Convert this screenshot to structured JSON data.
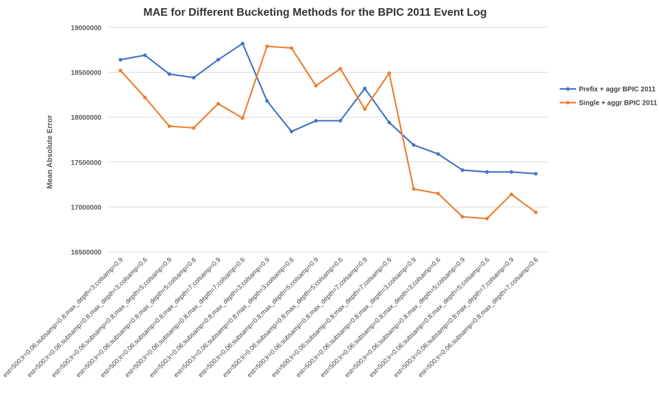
{
  "chart_data": {
    "type": "line",
    "title": "MAE for Different Bucketing Methods for the BPIC 2011 Event Log",
    "xlabel": "",
    "ylabel": "Mean Absolute Error",
    "ylim": [
      16500000,
      19000000
    ],
    "yticks": [
      16500000,
      17000000,
      17500000,
      18000000,
      18500000,
      19000000
    ],
    "grid": true,
    "legend_position": "right",
    "categories": [
      "est=500;lr=0.06;subsamp=0.8;max_depth=3;colsamp=0.9",
      "est=500;lr=0.06;subsamp=0.8;max_depth=3;colsamp=0.6",
      "est=500;lr=0.06;subsamp=0.8;max_depth=5;colsamp=0.9",
      "est=500;lr=0.06;subsamp=0.8;max_depth=5;colsamp=0.6",
      "est=500;lr=0.06;subsamp=0.8;max_depth=7;colsamp=0.9",
      "est=500;lr=0.06;subsamp=0.8;max_depth=7;colsamp=0.6",
      "est=500;lr=0.06;subsamp=0.8;max_depth=3;colsamp=0.9",
      "est=500;lr=0.06;subsamp=0.8;max_depth=3;colsamp=0.6",
      "est=500;lr=0.06;subsamp=0.8;max_depth=5;colsamp=0.9",
      "est=500;lr=0.06;subsamp=0.8;max_depth=5;colsamp=0.6",
      "est=500;lr=0.06;subsamp=0.8;max_depth=7;colsamp=0.9",
      "est=500;lr=0.06;subsamp=0.8;max_depth=7;colsamp=0.6",
      "est=500;lr=0.06;subsamp=0.8;max_depth=3;colsamp=0.9",
      "est=500;lr=0.06;subsamp=0.8;max_depth=3;colsamp=0.6",
      "est=500;lr=0.06;subsamp=0.8;max_depth=5;colsamp=0.9",
      "est=500;lr=0.06;subsamp=0.8;max_depth=5;colsamp=0.6",
      "est=500;lr=0.06;subsamp=0.8;max_depth=7;colsamp=0.9",
      "est=500;lr=0.06;subsamp=0.8;max_depth=7;colsamp=0.6"
    ],
    "series": [
      {
        "name": "Prefix + aggr BPIC 2011",
        "color": "#4472C4",
        "values": [
          18640000,
          18690000,
          18480000,
          18440000,
          18640000,
          18820000,
          18180000,
          17840000,
          17960000,
          17960000,
          18320000,
          17940000,
          17690000,
          17590000,
          17410000,
          17390000,
          17390000,
          17370000
        ]
      },
      {
        "name": "Single + aggr BPIC 2011",
        "color": "#ED7D31",
        "values": [
          18520000,
          18220000,
          17900000,
          17880000,
          18150000,
          17990000,
          18790000,
          18770000,
          18350000,
          18540000,
          18090000,
          18490000,
          17200000,
          17150000,
          16890000,
          16870000,
          17140000,
          16940000
        ]
      }
    ]
  }
}
